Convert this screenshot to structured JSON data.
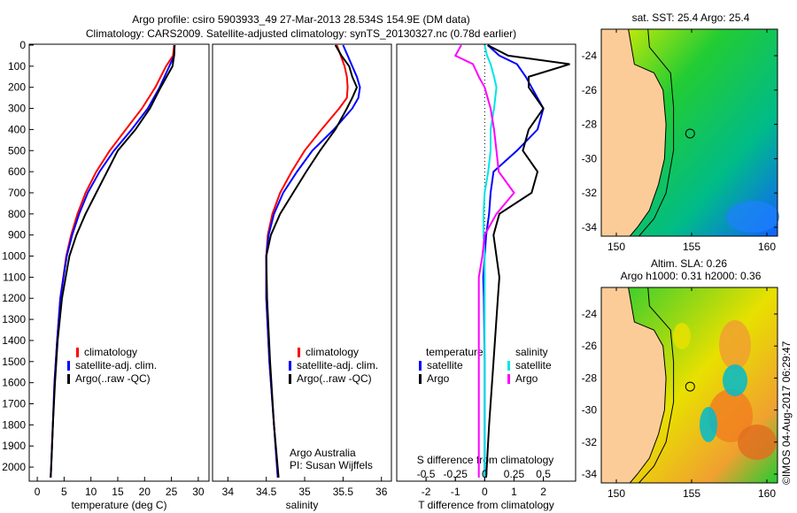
{
  "title": {
    "line1": "Argo profile: csiro 5903933_49 27-Mar-2013 28.534S 154.9E (DM data)",
    "line2": "Climatology: CARS2009. Satellite-adjusted climatology: synTS_20130327.nc (0.78d earlier)"
  },
  "colors": {
    "clim": "#ff0000",
    "sat": "#0000ff",
    "argo": "#000000",
    "sat_s": "#00e5e5",
    "argo_s": "#ff00ff"
  },
  "chart_data": [
    {
      "type": "line",
      "name": "temperature",
      "xlabel": "temperature (deg C)",
      "xlim": [
        -1.5,
        32
      ],
      "ylim": [
        0,
        2050
      ],
      "xticks": [
        "0",
        "5",
        "10",
        "15",
        "20",
        "25",
        "30"
      ],
      "xtick_values": [
        0,
        5,
        10,
        15,
        20,
        25,
        30
      ],
      "yticks": [
        "0",
        "100",
        "200",
        "300",
        "400",
        "500",
        "600",
        "700",
        "800",
        "900",
        "1000",
        "1100",
        "1200",
        "1300",
        "1400",
        "1500",
        "1600",
        "1700",
        "1800",
        "1900",
        "2000"
      ],
      "depth": [
        0,
        50,
        100,
        200,
        300,
        400,
        500,
        600,
        700,
        800,
        900,
        1000,
        1200,
        1400,
        1600,
        1800,
        2000,
        2050
      ],
      "series": [
        {
          "name": "climatology",
          "color": "#ff0000",
          "values": [
            25.5,
            25.3,
            24.0,
            22.0,
            19.5,
            16.5,
            13.5,
            11.0,
            9.0,
            7.5,
            6.3,
            5.4,
            4.3,
            3.7,
            3.2,
            2.9,
            2.6,
            2.5
          ]
        },
        {
          "name": "satellite-adj. clim.",
          "color": "#0000ff",
          "values": [
            25.6,
            25.5,
            24.6,
            22.8,
            20.6,
            17.6,
            14.3,
            11.6,
            9.4,
            7.8,
            6.5,
            5.5,
            4.3,
            3.7,
            3.2,
            2.9,
            2.6,
            2.5
          ]
        },
        {
          "name": "Argo(..raw -QC)",
          "color": "#000000",
          "values": [
            25.6,
            25.5,
            25.2,
            23.0,
            21.0,
            18.3,
            15.0,
            13.0,
            11.0,
            9.0,
            7.3,
            6.0,
            4.6,
            3.8,
            3.3,
            2.9,
            2.6,
            2.5
          ]
        }
      ],
      "legend": [
        "climatology",
        "satellite-adj. clim.",
        "Argo(..raw -QC)"
      ]
    },
    {
      "type": "line",
      "name": "salinity",
      "xlabel": "salinity",
      "xlim": [
        33.8,
        36.13
      ],
      "ylim": [
        0,
        2050
      ],
      "xticks": [
        "34",
        "34.5",
        "35",
        "35.5",
        "36"
      ],
      "xtick_values": [
        34,
        34.5,
        35,
        35.5,
        36
      ],
      "depth": [
        0,
        50,
        100,
        150,
        200,
        250,
        300,
        400,
        500,
        600,
        700,
        800,
        900,
        1000,
        1200,
        1500,
        1800,
        2050
      ],
      "series": [
        {
          "name": "climatology",
          "color": "#ff0000",
          "values": [
            35.42,
            35.47,
            35.52,
            35.55,
            35.56,
            35.55,
            35.45,
            35.22,
            35.0,
            34.83,
            34.68,
            34.58,
            34.52,
            34.5,
            34.5,
            34.54,
            34.6,
            34.65
          ]
        },
        {
          "name": "satellite-adj. clim.",
          "color": "#0000ff",
          "values": [
            35.5,
            35.56,
            35.62,
            35.68,
            35.72,
            35.7,
            35.62,
            35.38,
            35.1,
            34.9,
            34.72,
            34.6,
            34.53,
            34.5,
            34.5,
            34.54,
            34.6,
            34.65
          ]
        },
        {
          "name": "Argo(..raw -QC)",
          "color": "#000000",
          "values": [
            35.4,
            35.48,
            35.58,
            35.62,
            35.68,
            35.62,
            35.55,
            35.4,
            35.2,
            35.02,
            34.85,
            34.68,
            34.56,
            34.5,
            34.51,
            34.55,
            34.6,
            34.66
          ]
        }
      ],
      "legend": [
        "climatology",
        "satellite-adj. clim.",
        "Argo(..raw -QC)"
      ],
      "annotation1": "Argo Australia",
      "annotation2": "PI: Susan Wijffels"
    },
    {
      "type": "line",
      "name": "difference",
      "xlabel": "T difference from climatology",
      "xlabel_top": "S difference from climatology",
      "xlim": [
        -3,
        3.1
      ],
      "ylim": [
        0,
        2050
      ],
      "xticks": [
        "-2",
        "-1",
        "0",
        "1",
        "2"
      ],
      "xtick_values": [
        -2,
        -1,
        0,
        1,
        2
      ],
      "s_ticks": [
        "-0.5",
        "-0.25",
        "0",
        "0.25",
        "0.5"
      ],
      "s_tick_values": [
        -0.5,
        -0.25,
        0,
        0.25,
        0.5
      ],
      "depth": [
        0,
        50,
        90,
        150,
        200,
        300,
        400,
        500,
        600,
        700,
        800,
        900,
        1000,
        1100,
        1200,
        1500,
        1800,
        2050
      ],
      "series": [
        {
          "name": "temperature satellite",
          "quantity": "T",
          "color": "#0000ff",
          "values": [
            0.1,
            0.5,
            1.1,
            1.4,
            1.6,
            2.0,
            1.8,
            1.1,
            0.3,
            0.2,
            0.15,
            0.05,
            0.0,
            -0.05,
            -0.03,
            0.0,
            0.0,
            0.0
          ]
        },
        {
          "name": "temperature Argo",
          "quantity": "T",
          "color": "#000000",
          "values": [
            0.1,
            0.8,
            2.9,
            1.5,
            1.5,
            2.0,
            1.5,
            1.3,
            1.8,
            1.6,
            0.5,
            0.3,
            0.4,
            0.5,
            0.45,
            0.3,
            0.15,
            0.05
          ]
        },
        {
          "name": "salinity satellite",
          "quantity": "S",
          "color": "#00e5e5",
          "values": [
            0.0,
            0.02,
            0.05,
            0.08,
            0.1,
            0.08,
            0.05,
            0.05,
            0.03,
            0.0,
            -0.01,
            -0.01,
            0.0,
            0.0,
            0.0,
            0.0,
            0.0,
            0.0
          ]
        },
        {
          "name": "salinity Argo",
          "quantity": "S",
          "color": "#ff00ff",
          "values": [
            -0.2,
            -0.25,
            -0.1,
            -0.05,
            0.0,
            0.05,
            0.08,
            0.1,
            0.12,
            0.25,
            0.1,
            0.0,
            -0.02,
            -0.05,
            -0.05,
            -0.05,
            -0.05,
            -0.05
          ]
        }
      ],
      "legend_t_title": "temperature",
      "legend_s_title": "salinity",
      "legend_sat": "satellite",
      "legend_argo": "Argo"
    }
  ],
  "maps": {
    "sst_title": "sat. SST: 25.4 Argo: 25.4",
    "sla_title1": "Altim. SLA: 0.26",
    "sla_title2": "Argo h1000: 0.31 h2000: 0.36",
    "lon_ticks": [
      "150",
      "155",
      "160"
    ],
    "lat_ticks": [
      "-24",
      "-26",
      "-28",
      "-30",
      "-32",
      "-34"
    ],
    "float_lon": 154.9,
    "float_lat": -28.534
  },
  "credit": "©IMOS 04-Aug-2017 06:29:47"
}
